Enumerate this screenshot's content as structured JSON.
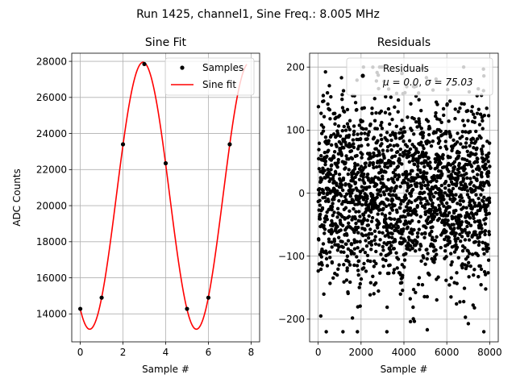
{
  "figure": {
    "suptitle": "Run 1425, channel1, Sine Freq.: 8.005 MHz"
  },
  "chart_data": [
    {
      "type": "line",
      "title": "Sine Fit",
      "xlabel": "Sample #",
      "ylabel": "ADC Counts",
      "xlim": [
        -0.4,
        8.4
      ],
      "ylim": [
        12450,
        28450
      ],
      "xticks": [
        0,
        2,
        4,
        6,
        8
      ],
      "yticks": [
        14000,
        16000,
        18000,
        20000,
        22000,
        24000,
        26000,
        28000
      ],
      "grid": true,
      "legend": "top-right",
      "series": [
        {
          "name": "Samples",
          "kind": "scatter",
          "color": "#000000",
          "x": [
            0,
            1,
            2,
            3,
            4,
            5,
            6,
            7
          ],
          "y": [
            14280,
            14900,
            23400,
            27850,
            22350,
            14280,
            14900,
            23400
          ]
        },
        {
          "name": "Sine fit",
          "kind": "line",
          "color": "#ff0000",
          "model": {
            "offset": 20550,
            "amplitude": 7400,
            "period": 4.997,
            "peak_x": 2.94,
            "x_range": [
              0,
              7.8
            ]
          }
        }
      ]
    },
    {
      "type": "scatter",
      "title": "Residuals",
      "xlabel": "Sample #",
      "xlim": [
        -400,
        8400
      ],
      "ylim": [
        -236,
        222
      ],
      "xticks": [
        0,
        2000,
        4000,
        6000,
        8000
      ],
      "yticks": [
        -200,
        -100,
        0,
        100,
        200
      ],
      "yticklabels": [
        "−200",
        "−100",
        "0",
        "100",
        "200"
      ],
      "grid": true,
      "legend": "top-right",
      "series": [
        {
          "name": "Residuals",
          "color": "#000000",
          "n_points": 8000,
          "mean": 0.0,
          "sigma": 75.03,
          "extent": [
            -220,
            200
          ]
        }
      ],
      "legend_stats": {
        "mu_label": "μ = 0.0",
        "sigma_label": "σ = 75.03"
      }
    }
  ]
}
